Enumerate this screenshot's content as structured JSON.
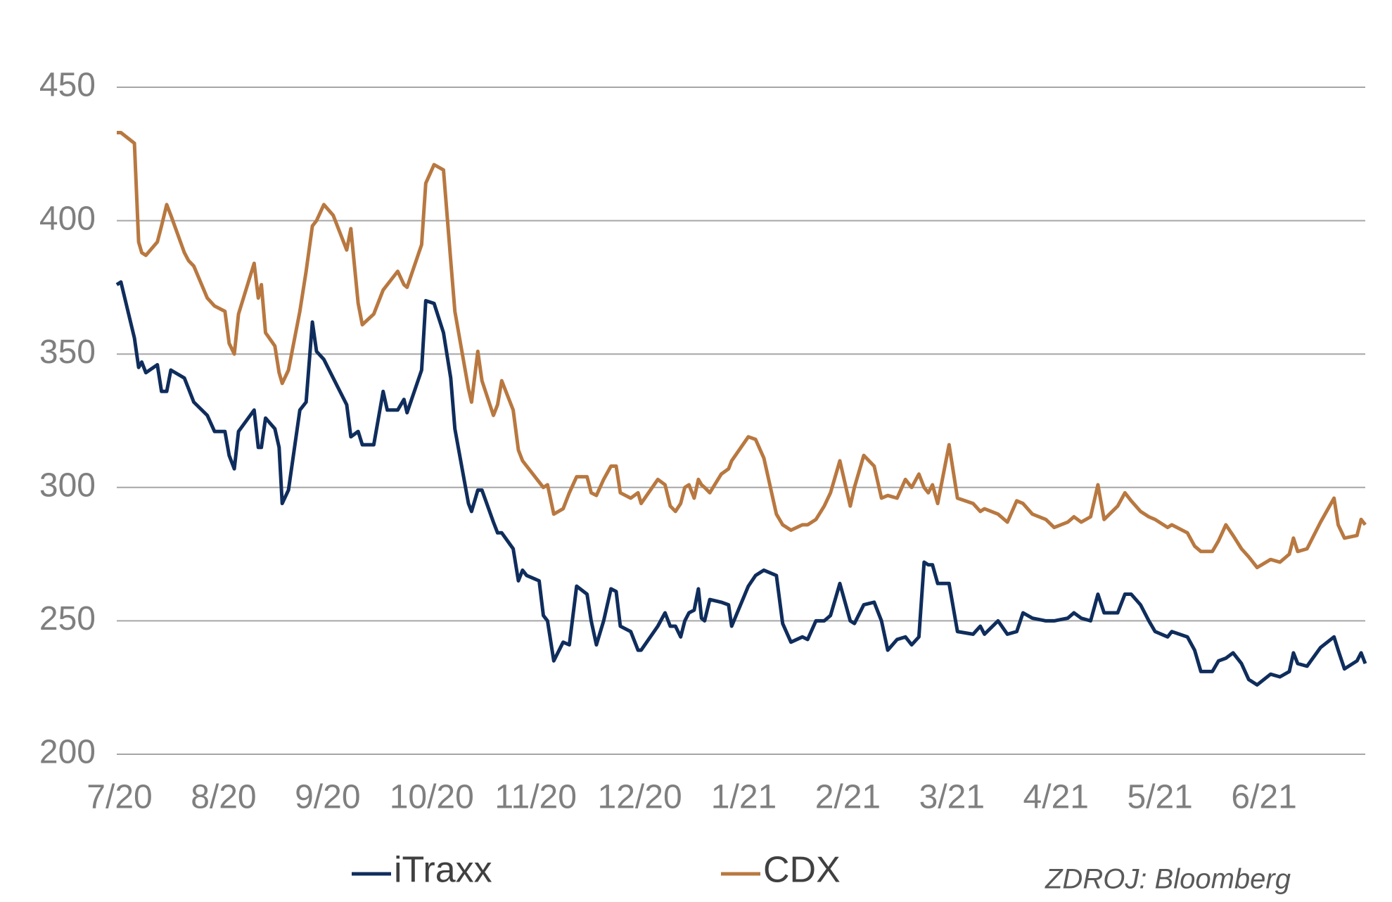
{
  "chart_data": {
    "type": "line",
    "x": [
      0,
      0.04,
      0.17,
      0.21,
      0.24,
      0.28,
      0.39,
      0.43,
      0.48,
      0.52,
      0.65,
      0.69,
      0.74,
      0.87,
      0.94,
      1.04,
      1.08,
      1.13,
      1.17,
      1.32,
      1.36,
      1.39,
      1.43,
      1.52,
      1.56,
      1.59,
      1.65,
      1.76,
      1.82,
      1.88,
      1.92,
      1.99,
      2.08,
      2.21,
      2.25,
      2.32,
      2.36,
      2.47,
      2.56,
      2.6,
      2.7,
      2.76,
      2.79,
      2.93,
      2.97,
      3.05,
      3.14,
      3.21,
      3.25,
      3.38,
      3.41,
      3.47,
      3.51,
      3.62,
      3.66,
      3.7,
      3.81,
      3.86,
      3.9,
      3.94,
      4.06,
      4.1,
      4.14,
      4.2,
      4.29,
      4.35,
      4.42,
      4.52,
      4.56,
      4.61,
      4.68,
      4.75,
      4.8,
      4.84,
      4.94,
      5.01,
      5.04,
      5.2,
      5.27,
      5.32,
      5.37,
      5.42,
      5.46,
      5.5,
      5.55,
      5.59,
      5.62,
      5.65,
      5.7,
      5.81,
      5.88,
      5.91,
      6.07,
      6.14,
      6.22,
      6.34,
      6.4,
      6.48,
      6.59,
      6.64,
      6.72,
      6.8,
      6.86,
      6.95,
      7.05,
      7.09,
      7.18,
      7.28,
      7.35,
      7.41,
      7.5,
      7.58,
      7.64,
      7.71,
      7.76,
      7.8,
      7.84,
      7.89,
      8.0,
      8.08,
      8.23,
      8.3,
      8.34,
      8.47,
      8.56,
      8.65,
      8.71,
      8.8,
      8.93,
      9.01,
      9.14,
      9.2,
      9.27,
      9.36,
      9.43,
      9.49,
      9.62,
      9.69,
      9.75,
      9.84,
      9.92,
      9.98,
      10.1,
      10.14,
      10.29,
      10.36,
      10.42,
      10.53,
      10.59,
      10.66,
      10.73,
      10.81,
      10.88,
      10.96,
      11.09,
      11.18,
      11.27,
      11.31,
      11.35,
      11.44,
      11.57,
      11.7,
      11.74,
      11.8,
      11.92,
      11.96,
      12.0
    ],
    "series": [
      {
        "name": "iTraxx",
        "color": "#0f2d5c",
        "values": [
          376,
          377,
          356,
          345,
          347,
          343,
          346,
          336,
          336,
          344,
          341,
          337,
          332,
          327,
          321,
          321,
          312,
          307,
          321,
          329,
          315,
          315,
          326,
          322,
          315,
          294,
          299,
          329,
          332,
          362,
          351,
          348,
          341,
          331,
          319,
          321,
          316,
          316,
          336,
          329,
          329,
          333,
          328,
          344,
          370,
          369,
          358,
          341,
          322,
          294,
          291,
          299,
          299,
          287,
          283,
          283,
          277,
          265,
          269,
          267,
          265,
          252,
          250,
          235,
          242,
          241,
          263,
          260,
          250,
          241,
          250,
          262,
          261,
          248,
          246,
          239,
          239,
          248,
          253,
          248,
          248,
          244,
          250,
          253,
          254,
          262,
          251,
          250,
          258,
          257,
          256,
          248,
          263,
          267,
          269,
          267,
          249,
          242,
          244,
          243,
          250,
          250,
          252,
          264,
          250,
          249,
          256,
          257,
          250,
          239,
          243,
          244,
          241,
          244,
          272,
          271,
          271,
          264,
          264,
          246,
          245,
          248,
          245,
          250,
          245,
          246,
          253,
          251,
          250,
          250,
          251,
          253,
          251,
          250,
          260,
          253,
          253,
          260,
          260,
          256,
          250,
          246,
          244,
          246,
          244,
          239,
          231,
          231,
          235,
          236,
          238,
          234,
          228,
          226,
          230,
          229,
          231,
          238,
          234,
          233,
          240,
          244,
          239,
          232,
          235,
          238,
          234
        ]
      },
      {
        "name": "CDX",
        "color": "#b87840",
        "values": [
          433,
          433,
          429,
          392,
          388,
          387,
          392,
          398,
          406,
          402,
          388,
          385,
          383,
          371,
          368,
          366,
          354,
          350,
          365,
          384,
          371,
          376,
          358,
          353,
          343,
          339,
          344,
          366,
          381,
          398,
          400,
          406,
          402,
          389,
          397,
          369,
          361,
          365,
          374,
          376,
          381,
          376,
          375,
          391,
          414,
          421,
          419,
          385,
          366,
          337,
          332,
          351,
          340,
          327,
          331,
          340,
          329,
          314,
          310,
          308,
          302,
          300,
          301,
          290,
          292,
          298,
          304,
          304,
          298,
          297,
          303,
          308,
          308,
          298,
          296,
          298,
          294,
          303,
          301,
          293,
          291,
          294,
          300,
          301,
          296,
          303,
          301,
          300,
          298,
          305,
          307,
          310,
          319,
          318,
          311,
          290,
          286,
          284,
          286,
          286,
          288,
          293,
          298,
          310,
          293,
          300,
          312,
          308,
          296,
          297,
          296,
          303,
          300,
          305,
          300,
          298,
          301,
          294,
          316,
          296,
          294,
          291,
          292,
          290,
          287,
          295,
          294,
          290,
          288,
          285,
          287,
          289,
          287,
          289,
          301,
          288,
          293,
          298,
          295,
          291,
          289,
          288,
          285,
          286,
          283,
          278,
          276,
          276,
          280,
          286,
          282,
          277,
          274,
          270,
          273,
          272,
          275,
          281,
          276,
          277,
          287,
          296,
          286,
          281,
          282,
          288,
          286
        ]
      }
    ],
    "xlim": [
      0,
      12
    ],
    "xticks": [
      {
        "value": 0,
        "label": "7/20"
      },
      {
        "value": 1,
        "label": "8/20"
      },
      {
        "value": 2,
        "label": "9/20"
      },
      {
        "value": 3,
        "label": "10/20"
      },
      {
        "value": 4,
        "label": "11/20"
      },
      {
        "value": 5,
        "label": "12/20"
      },
      {
        "value": 6,
        "label": "1/21"
      },
      {
        "value": 7,
        "label": "2/21"
      },
      {
        "value": 8,
        "label": "3/21"
      },
      {
        "value": 9,
        "label": "4/21"
      },
      {
        "value": 10,
        "label": "5/21"
      },
      {
        "value": 11,
        "label": "6/21"
      }
    ],
    "ylim": [
      200,
      450
    ],
    "yticks": [
      200,
      250,
      300,
      350,
      400,
      450
    ],
    "grid": true,
    "legend": "bottom",
    "source": "ZDROJ: Bloomberg"
  }
}
